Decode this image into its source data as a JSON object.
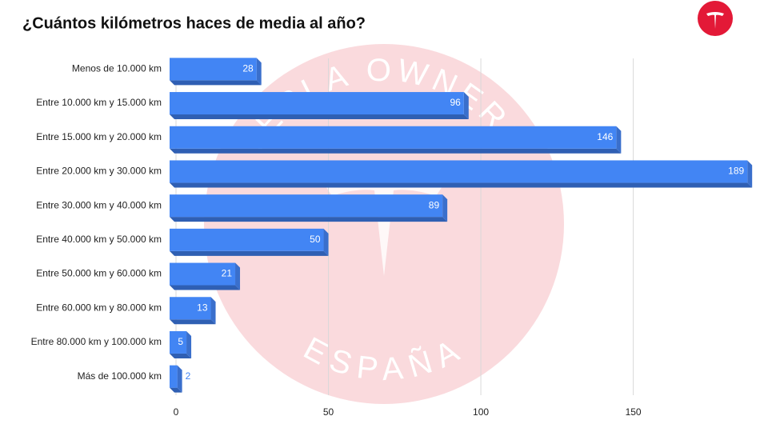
{
  "chart_data": {
    "type": "hbar",
    "title": "¿Cuántos kilómetros haces de media al año?",
    "categories": [
      "Menos de 10.000 km",
      "Entre 10.000 km y 15.000 km",
      "Entre 15.000 km y 20.000 km",
      "Entre 20.000 km y 30.000 km",
      "Entre 30.000 km y 40.000 km",
      "Entre 40.000 km y 50.000 km",
      "Entre 50.000 km y 60.000 km",
      "Entre 60.000 km y 80.000 km",
      "Entre 80.000 km y 100.000 km",
      "Más de 100.000 km"
    ],
    "values": [
      28,
      96,
      146,
      189,
      89,
      50,
      21,
      13,
      5,
      2
    ],
    "color": "#4285f4",
    "xlim": [
      0,
      190
    ],
    "xticks": [
      0,
      50,
      100,
      150
    ],
    "grid": true,
    "watermark": {
      "top": "TESLA OWNERS",
      "bottom": "ESPAÑA"
    }
  }
}
